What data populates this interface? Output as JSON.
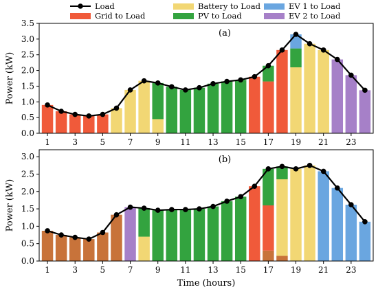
{
  "chart_data": {
    "type": "bar",
    "stacked": true,
    "x": [
      1,
      2,
      3,
      4,
      5,
      6,
      7,
      8,
      9,
      10,
      11,
      12,
      13,
      14,
      15,
      16,
      17,
      18,
      19,
      20,
      21,
      22,
      23,
      24
    ],
    "x_tick_labels": [
      "1",
      "3",
      "5",
      "7",
      "9",
      "11",
      "13",
      "15",
      "17",
      "19",
      "21",
      "23"
    ],
    "x_tick_values": [
      1,
      3,
      5,
      7,
      9,
      11,
      13,
      15,
      17,
      19,
      21,
      23
    ],
    "xlabel": "Time (hours)",
    "ylabel": "Power (kW)",
    "legend": {
      "placement": "top",
      "entries": [
        {
          "key": "load",
          "label": "Load"
        },
        {
          "key": "battery",
          "label": "Battery to Load"
        },
        {
          "key": "ev1",
          "label": "EV 1 to Load"
        },
        {
          "key": "grid",
          "label": "Grid to Load"
        },
        {
          "key": "pv",
          "label": "PV to Load"
        },
        {
          "key": "ev2",
          "label": "EV 2 to Load"
        }
      ]
    },
    "colors": {
      "load": "#000000",
      "battery": "#f2d774",
      "ev1": "#6aa6e0",
      "grid": "#f05a3a",
      "grid_dark": "#c8733a",
      "pv": "#33a33f",
      "ev2": "#a680c8"
    },
    "panels": [
      {
        "label": "(a)",
        "ylim": [
          0,
          3.5
        ],
        "y_ticks": [
          0.0,
          0.5,
          1.0,
          1.5,
          2.0,
          2.5,
          3.0,
          3.5
        ],
        "y_tick_labels": [
          "0.0",
          "0.5",
          "1.0",
          "1.5",
          "2.0",
          "2.5",
          "3.0",
          "3.5"
        ],
        "load": [
          0.9,
          0.7,
          0.6,
          0.55,
          0.6,
          0.8,
          1.38,
          1.67,
          1.6,
          1.48,
          1.38,
          1.45,
          1.58,
          1.65,
          1.7,
          1.8,
          2.15,
          2.65,
          3.15,
          2.85,
          2.65,
          2.35,
          1.85,
          1.37
        ],
        "series": [
          {
            "key": "grid",
            "values": [
              0.9,
              0.7,
              0.6,
              0.55,
              0.6,
              0,
              0,
              0,
              0,
              0,
              0,
              0,
              0,
              0,
              0,
              1.8,
              1.65,
              2.65,
              0,
              0,
              0,
              0,
              0,
              0
            ]
          },
          {
            "key": "battery",
            "values": [
              0,
              0,
              0,
              0,
              0,
              0.8,
              1.38,
              1.67,
              0.45,
              0,
              0,
              0,
              0,
              0,
              0,
              0,
              0,
              0,
              2.1,
              2.85,
              2.65,
              0,
              0,
              0
            ]
          },
          {
            "key": "pv",
            "values": [
              0,
              0,
              0,
              0,
              0,
              0,
              0,
              0,
              1.15,
              1.48,
              1.38,
              1.45,
              1.58,
              1.65,
              1.7,
              0,
              0.5,
              0,
              0.6,
              0,
              0,
              0,
              0,
              0
            ]
          },
          {
            "key": "ev1",
            "values": [
              0,
              0,
              0,
              0,
              0,
              0,
              0,
              0,
              0,
              0,
              0,
              0,
              0,
              0,
              0,
              0,
              0,
              0,
              0.45,
              0,
              0,
              0,
              0,
              0
            ]
          },
          {
            "key": "ev2",
            "values": [
              0,
              0,
              0,
              0,
              0,
              0,
              0,
              0,
              0,
              0,
              0,
              0,
              0,
              0,
              0,
              0,
              0,
              0,
              0,
              0,
              0,
              2.35,
              1.85,
              1.37
            ]
          }
        ]
      },
      {
        "label": "(b)",
        "ylim": [
          0,
          3.2
        ],
        "y_ticks": [
          0.0,
          0.5,
          1.0,
          1.5,
          2.0,
          2.5,
          3.0
        ],
        "y_tick_labels": [
          "0.0",
          "0.5",
          "1.0",
          "1.5",
          "2.0",
          "2.5",
          "3.0"
        ],
        "load": [
          0.87,
          0.75,
          0.68,
          0.63,
          0.82,
          1.33,
          1.55,
          1.52,
          1.46,
          1.48,
          1.48,
          1.5,
          1.57,
          1.72,
          1.85,
          2.15,
          2.65,
          2.72,
          2.65,
          2.75,
          2.58,
          2.1,
          1.62,
          1.13
        ],
        "series": [
          {
            "key": "grid_dark",
            "values": [
              0.87,
              0.75,
              0.68,
              0.63,
              0.82,
              1.33,
              0,
              0,
              0,
              0,
              0,
              0,
              0,
              0,
              0,
              0,
              0.3,
              0.15,
              0,
              0,
              0,
              0,
              0,
              0
            ]
          },
          {
            "key": "grid",
            "values": [
              0,
              0,
              0,
              0,
              0,
              0,
              0,
              0,
              0,
              0,
              0,
              0,
              0,
              0,
              0,
              2.15,
              1.3,
              0,
              0,
              0,
              0,
              0,
              0,
              0
            ]
          },
          {
            "key": "battery",
            "values": [
              0,
              0,
              0,
              0,
              0,
              0,
              0,
              0.7,
              0,
              0,
              0,
              0,
              0,
              0,
              0,
              0,
              0,
              2.2,
              2.65,
              2.75,
              0,
              0,
              0,
              0
            ]
          },
          {
            "key": "pv",
            "values": [
              0,
              0,
              0,
              0,
              0,
              0,
              0,
              0.82,
              1.46,
              1.48,
              1.48,
              1.5,
              1.57,
              1.72,
              1.85,
              0,
              1.05,
              0.37,
              0,
              0,
              0,
              0,
              0,
              0
            ]
          },
          {
            "key": "ev1",
            "values": [
              0,
              0,
              0,
              0,
              0,
              0,
              0,
              0,
              0,
              0,
              0,
              0,
              0,
              0,
              0,
              0,
              0,
              0,
              0,
              0,
              2.58,
              2.1,
              1.62,
              1.13
            ]
          },
          {
            "key": "ev2",
            "values": [
              0,
              0,
              0,
              0,
              0,
              0,
              1.55,
              0,
              0,
              0,
              0,
              0,
              0,
              0,
              0,
              0,
              0,
              0,
              0,
              0,
              0,
              0,
              0,
              0
            ]
          }
        ]
      }
    ]
  }
}
